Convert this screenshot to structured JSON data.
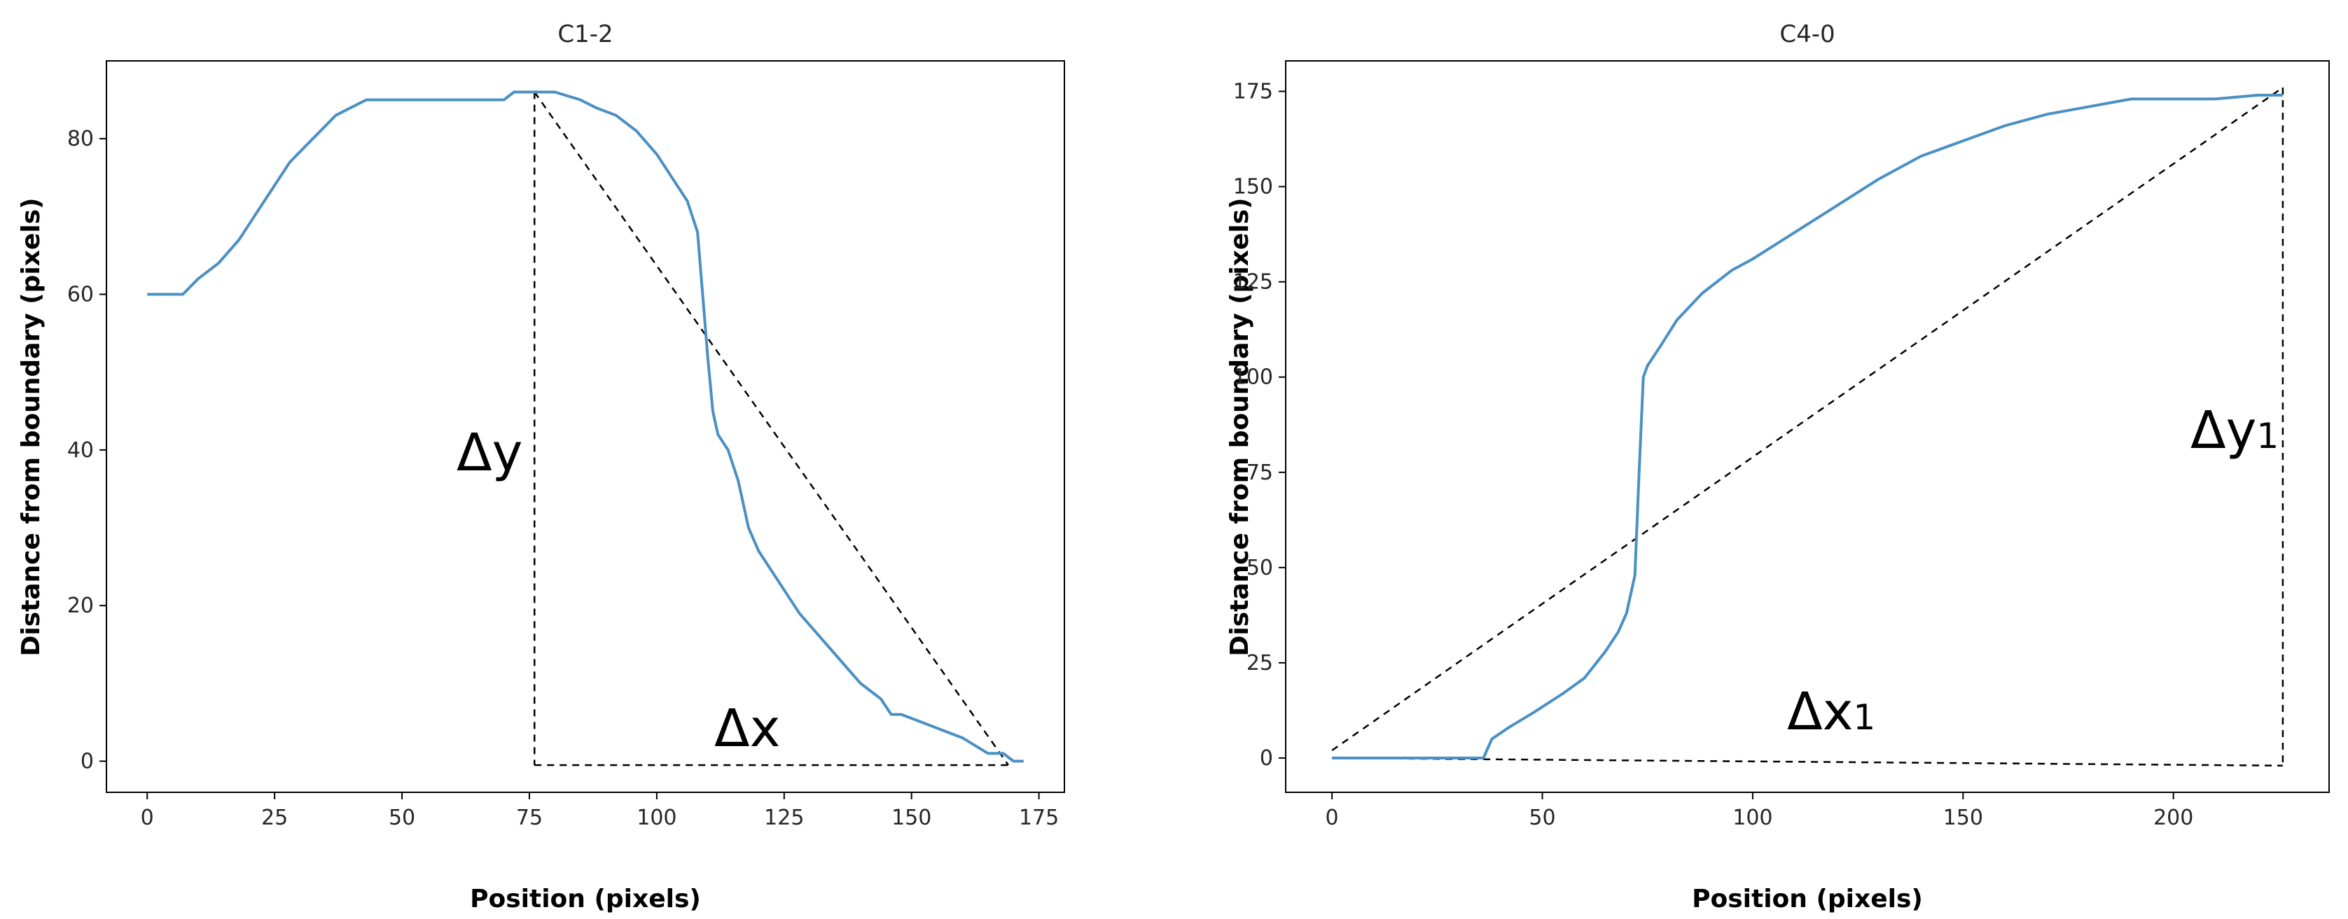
{
  "chart_data": [
    {
      "type": "line",
      "title": "C1-2",
      "xlabel": "Position (pixels)",
      "ylabel": "Distance from boundary (pixels)",
      "xlim": [
        -8,
        180
      ],
      "ylim": [
        -4,
        90
      ],
      "xticks": [
        0,
        25,
        50,
        75,
        100,
        125,
        150,
        175
      ],
      "yticks": [
        0,
        20,
        40,
        60,
        80
      ],
      "line_color": "#4a90c4",
      "series": [
        {
          "x": [
            0,
            4,
            7,
            10,
            14,
            18,
            21,
            25,
            28,
            31,
            34,
            37,
            40,
            43,
            46,
            50,
            55,
            60,
            65,
            70,
            72,
            75,
            80,
            85,
            88,
            92,
            96,
            100,
            103,
            106,
            108,
            109,
            110,
            111,
            112,
            114,
            116,
            118,
            120,
            124,
            128,
            132,
            136,
            140,
            144,
            146,
            148,
            152,
            156,
            160,
            165,
            168,
            170,
            172
          ],
          "y": [
            60,
            60,
            60,
            62,
            64,
            67,
            70,
            74,
            77,
            79,
            81,
            83,
            84,
            85,
            85,
            85,
            85,
            85,
            85,
            85,
            86,
            86,
            86,
            85,
            84,
            83,
            81,
            78,
            75,
            72,
            68,
            60,
            52,
            45,
            42,
            40,
            36,
            30,
            27,
            23,
            19,
            16,
            13,
            10,
            8,
            6,
            6,
            5,
            4,
            3,
            1,
            1,
            0,
            0
          ]
        }
      ],
      "annotations": {
        "dy_label": "Δy",
        "dx_label": "Δx"
      },
      "guides": {
        "diagonal": {
          "from": [
            76,
            86
          ],
          "to": [
            169,
            -0.5
          ]
        },
        "vertical": {
          "from": [
            76,
            86
          ],
          "to": [
            76,
            -0.5
          ]
        },
        "horizontal": {
          "from": [
            76,
            -0.5
          ],
          "to": [
            169,
            -0.5
          ]
        }
      }
    },
    {
      "type": "line",
      "title": "C4-0",
      "xlabel": "Position (pixels)",
      "ylabel": "Distance from boundary (pixels)",
      "xlim": [
        -11,
        237
      ],
      "ylim": [
        -9,
        183
      ],
      "xticks": [
        0,
        50,
        100,
        150,
        200
      ],
      "yticks": [
        0,
        25,
        50,
        75,
        100,
        125,
        150,
        175
      ],
      "line_color": "#4a90c4",
      "series": [
        {
          "x": [
            0,
            10,
            20,
            30,
            36,
            38,
            42,
            48,
            55,
            60,
            65,
            68,
            70,
            72,
            73,
            74,
            75,
            78,
            82,
            88,
            95,
            100,
            110,
            120,
            130,
            140,
            150,
            160,
            170,
            180,
            190,
            200,
            210,
            220,
            226
          ],
          "y": [
            0,
            0,
            0,
            0,
            0,
            5,
            8,
            12,
            17,
            21,
            28,
            33,
            38,
            48,
            75,
            100,
            103,
            108,
            115,
            122,
            128,
            131,
            138,
            145,
            152,
            158,
            162,
            166,
            169,
            171,
            173,
            173,
            173,
            174,
            174
          ]
        }
      ],
      "annotations": {
        "dy_label": "Δy",
        "dy_sub": "1",
        "dx_label": "Δx",
        "dx_sub": "1"
      },
      "guides": {
        "diagonal": {
          "from": [
            0,
            2
          ],
          "to": [
            226,
            176
          ]
        },
        "vertical": {
          "from": [
            226,
            176
          ],
          "to": [
            226,
            -2
          ]
        },
        "horizontal": {
          "from": [
            0,
            0
          ],
          "to": [
            226,
            -2
          ]
        }
      }
    }
  ]
}
